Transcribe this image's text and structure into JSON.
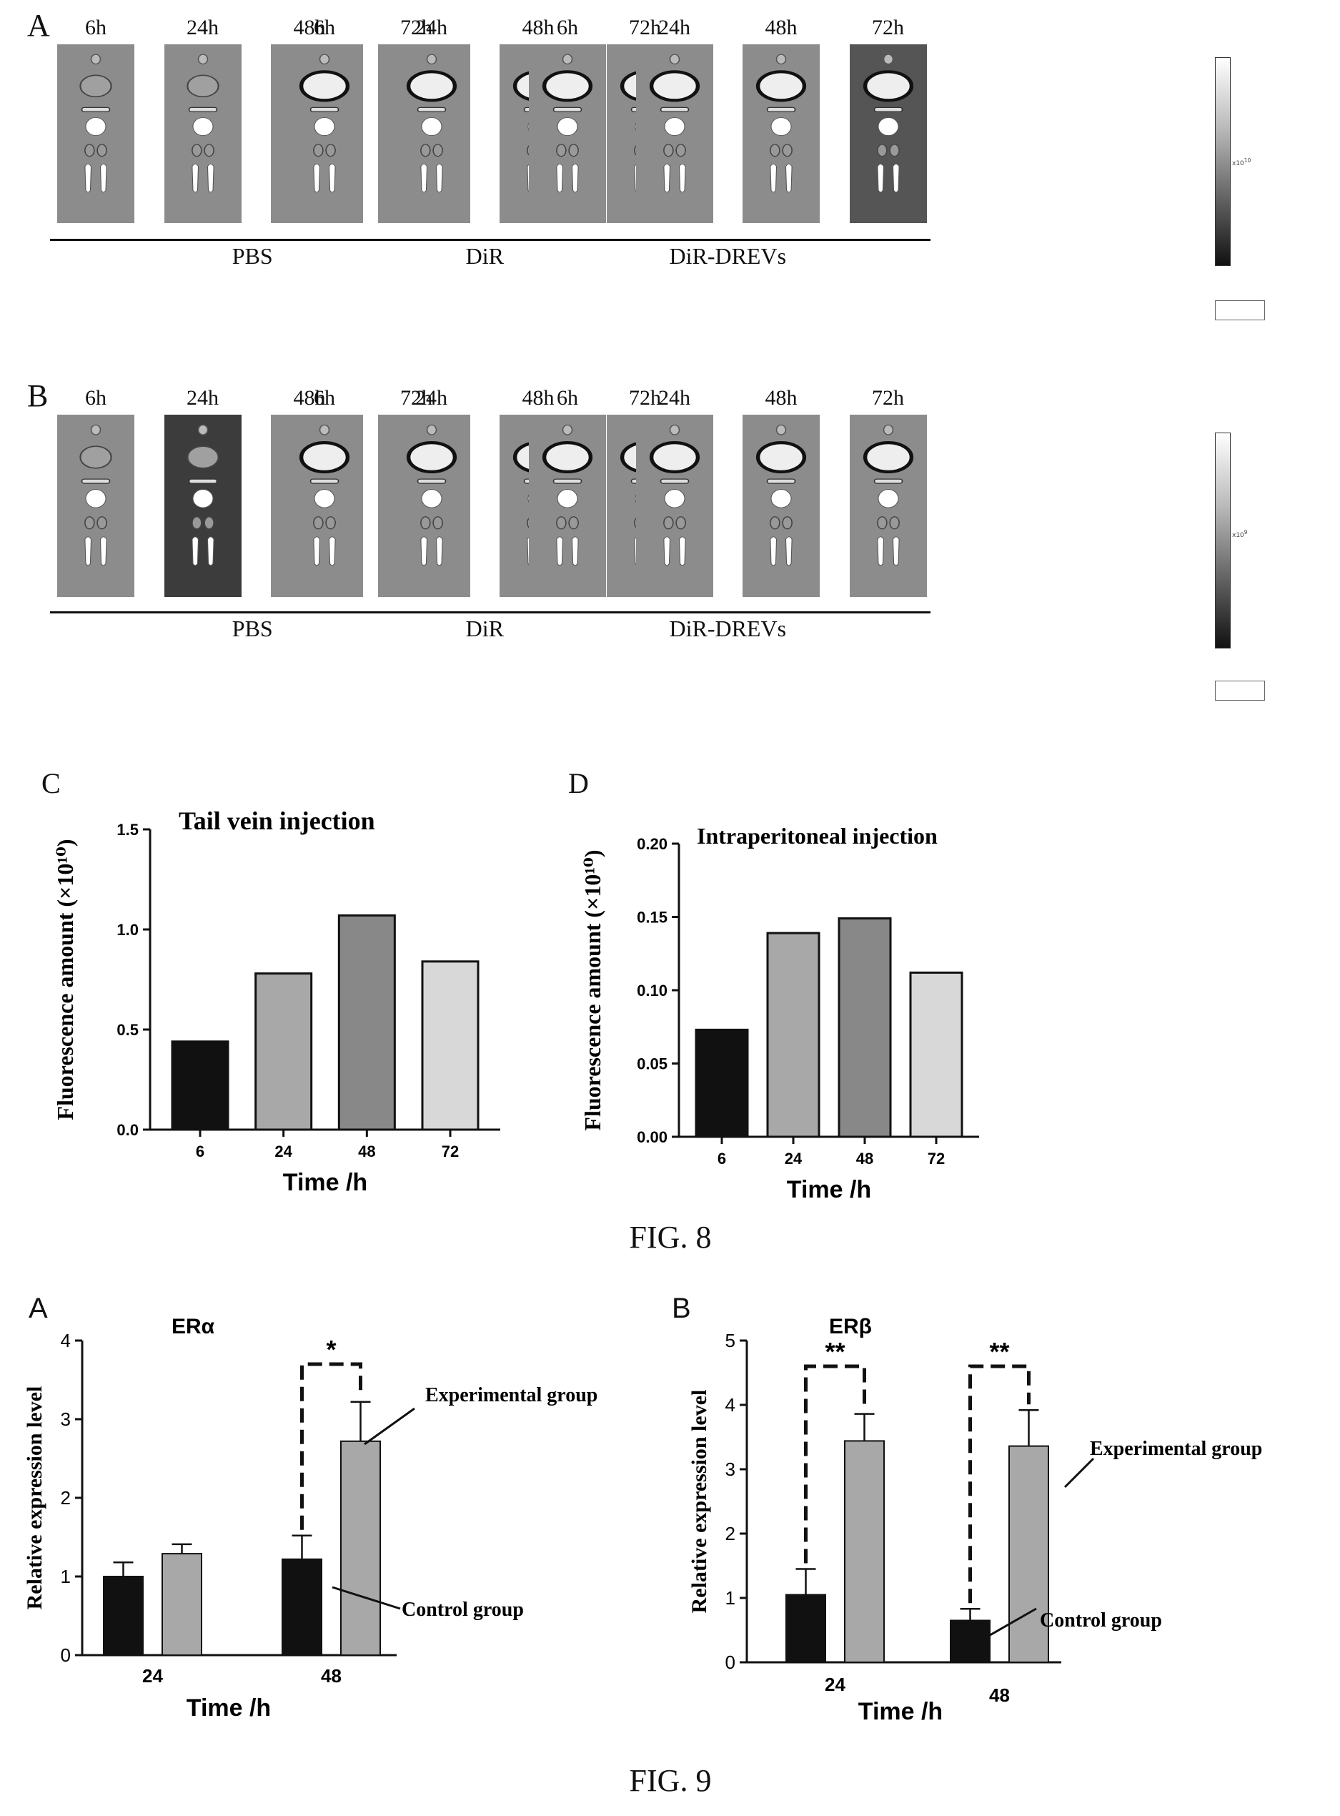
{
  "fig8": {
    "caption": "FIG. 8",
    "panelA": {
      "letter": "A",
      "times": [
        "6h",
        "24h",
        "48h",
        "72h"
      ],
      "groups": [
        "PBS",
        "DiR",
        "DiR-DREVs"
      ]
    },
    "panelB": {
      "letter": "B",
      "times": [
        "6h",
        "24h",
        "48h",
        "72h"
      ],
      "groups": [
        "PBS",
        "DiR",
        "DiR-DREVs"
      ]
    },
    "colorbarA": {
      "exp": "x10",
      "sup": "10"
    },
    "colorbarB": {
      "exp": "x10",
      "sup": "9"
    }
  },
  "fig9": {
    "caption": "FIG. 9"
  },
  "colors": {
    "black": "#111111",
    "gray": "#a8a8a8",
    "darkgray": "#888888",
    "lightgray": "#d8d8d8"
  },
  "chart_data": [
    {
      "panel": "C",
      "type": "bar",
      "title": "Tail vein injection",
      "categories": [
        "6",
        "24",
        "48",
        "72"
      ],
      "values": [
        0.44,
        0.78,
        1.07,
        0.84
      ],
      "xlabel": "Time /h",
      "ylabel": "Fluorescence amount (×10¹⁰)",
      "ylim": [
        0,
        1.5
      ],
      "yticks": [
        "0.0",
        "0.5",
        "1.0",
        "1.5"
      ],
      "bar_colors": [
        "#111111",
        "#a8a8a8",
        "#888888",
        "#d8d8d8"
      ]
    },
    {
      "panel": "D",
      "type": "bar",
      "title": "Intraperitoneal injection",
      "categories": [
        "6",
        "24",
        "48",
        "72"
      ],
      "values": [
        0.073,
        0.139,
        0.149,
        0.112
      ],
      "xlabel": "Time /h",
      "ylabel": "Fluorescence amount (×10¹⁰)",
      "ylim": [
        0,
        0.2
      ],
      "yticks": [
        "0.00",
        "0.05",
        "0.10",
        "0.15",
        "0.20"
      ],
      "bar_colors": [
        "#111111",
        "#a8a8a8",
        "#888888",
        "#d8d8d8"
      ]
    },
    {
      "panel": "A",
      "type": "bar",
      "title": "ERα",
      "categories": [
        "24",
        "48"
      ],
      "series": [
        {
          "name": "Control group",
          "values": [
            1.0,
            1.22
          ],
          "errors": [
            0.18,
            0.3
          ]
        },
        {
          "name": "Experimental group",
          "values": [
            1.29,
            2.72
          ],
          "errors": [
            0.12,
            0.5
          ]
        }
      ],
      "significance": [
        "",
        "*"
      ],
      "xlabel": "Time /h",
      "ylabel": "Relative expression level",
      "ylim": [
        0,
        4
      ],
      "yticks": [
        "0",
        "1",
        "2",
        "3",
        "4"
      ]
    },
    {
      "panel": "B",
      "type": "bar",
      "title": "ERβ",
      "categories": [
        "24",
        "48"
      ],
      "series": [
        {
          "name": "Control group",
          "values": [
            1.05,
            0.65
          ],
          "errors": [
            0.4,
            0.18
          ]
        },
        {
          "name": "Experimental group",
          "values": [
            3.44,
            3.36
          ],
          "errors": [
            0.42,
            0.56
          ]
        }
      ],
      "significance": [
        "**",
        "**"
      ],
      "xlabel": "Time /h",
      "ylabel": "Relative expression level",
      "ylim": [
        0,
        5
      ],
      "yticks": [
        "0",
        "1",
        "2",
        "3",
        "4",
        "5"
      ]
    }
  ]
}
